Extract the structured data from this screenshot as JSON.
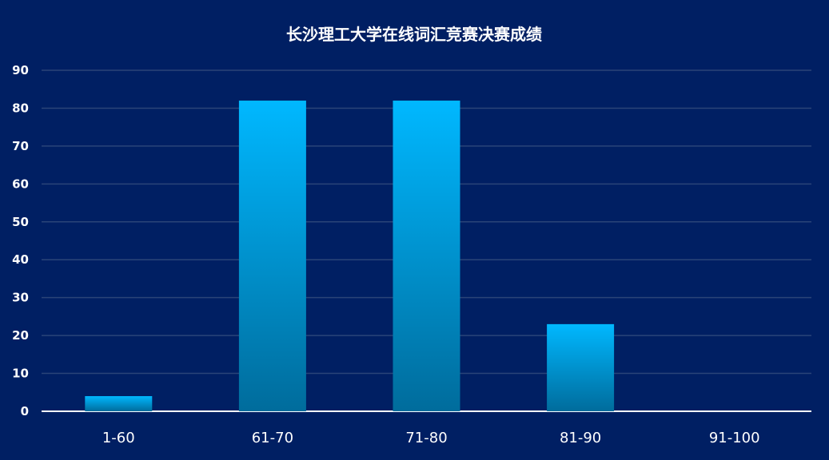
{
  "chart_data": {
    "type": "bar",
    "title": "长沙理工大学在线词汇竞赛决赛成绩",
    "categories": [
      "1-60",
      "61-70",
      "71-80",
      "81-90",
      "91-100"
    ],
    "values": [
      4,
      82,
      82,
      23,
      0
    ],
    "ylim": [
      0,
      90
    ],
    "yticks": [
      0,
      10,
      20,
      30,
      40,
      50,
      60,
      70,
      80,
      90
    ],
    "grid": true,
    "colors": {
      "background": "#001f63",
      "bar_top": "#00b8ff",
      "bar_bottom": "#006c9c",
      "grid": "#2a4478",
      "axis": "#ffffff"
    }
  }
}
